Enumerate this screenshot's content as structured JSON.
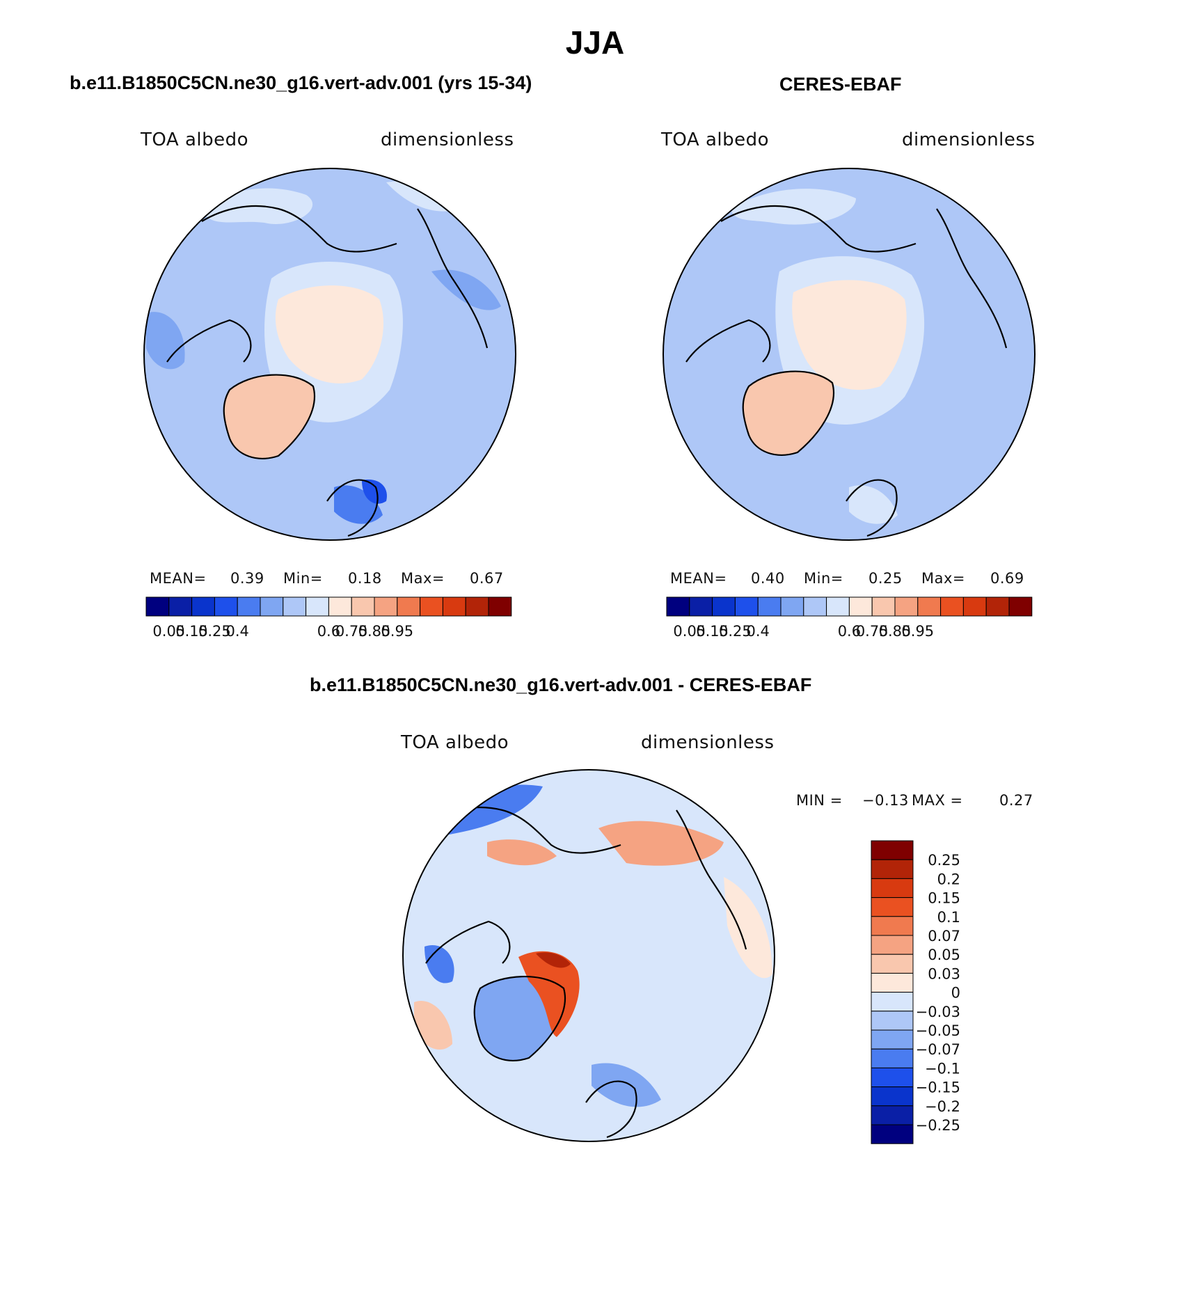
{
  "main_title": "JJA",
  "panels": [
    {
      "title": "b.e11.B1850C5CN.ne30_g16.vert-adv.001 (yrs 15-34)",
      "left_label": "TOA albedo",
      "right_label": "dimensionless",
      "stats": {
        "mean_label": "MEAN=",
        "mean": "0.39",
        "min_label": "Min=",
        "min": "0.18",
        "max_label": "Max=",
        "max": "0.67"
      }
    },
    {
      "title": "CERES-EBAF",
      "left_label": "TOA albedo",
      "right_label": "dimensionless",
      "stats": {
        "mean_label": "MEAN=",
        "mean": "0.40",
        "min_label": "Min=",
        "min": "0.25",
        "max_label": "Max=",
        "max": "0.69"
      }
    },
    {
      "title": "b.e11.B1850C5CN.ne30_g16.vert-adv.001 - CERES-EBAF",
      "left_label": "TOA albedo",
      "right_label": "dimensionless",
      "stats": {
        "min_label": "MIN =",
        "min": "−0.13",
        "max_label": "MAX =",
        "max": "0.27"
      }
    }
  ],
  "colorbar_abs": {
    "colors": [
      "#00007f",
      "#0a1fa6",
      "#0a34cc",
      "#1e50eb",
      "#4a7cf0",
      "#7fa6f2",
      "#aec7f7",
      "#d8e6fb",
      "#fde8db",
      "#f9c7ae",
      "#f5a382",
      "#f07a4f",
      "#ea5121",
      "#d83a10",
      "#b22408",
      "#7f0000"
    ],
    "tick_labels": [
      "0.05",
      "0.15",
      "0.25",
      "0.4",
      "0.6",
      "0.75",
      "0.85",
      "0.95"
    ]
  },
  "colorbar_diff": {
    "colors": [
      "#7f0000",
      "#b22408",
      "#d83a10",
      "#ea5121",
      "#f07a4f",
      "#f5a382",
      "#f9c7ae",
      "#fde8db",
      "#d8e6fb",
      "#aec7f7",
      "#7fa6f2",
      "#4a7cf0",
      "#1e50eb",
      "#0a34cc",
      "#0a1fa6",
      "#00007f"
    ],
    "tick_labels": [
      "0.25",
      "0.2",
      "0.15",
      "0.1",
      "0.07",
      "0.05",
      "0.03",
      "0",
      "−0.03",
      "−0.05",
      "−0.07",
      "−0.1",
      "−0.15",
      "−0.2",
      "−0.25"
    ]
  }
}
